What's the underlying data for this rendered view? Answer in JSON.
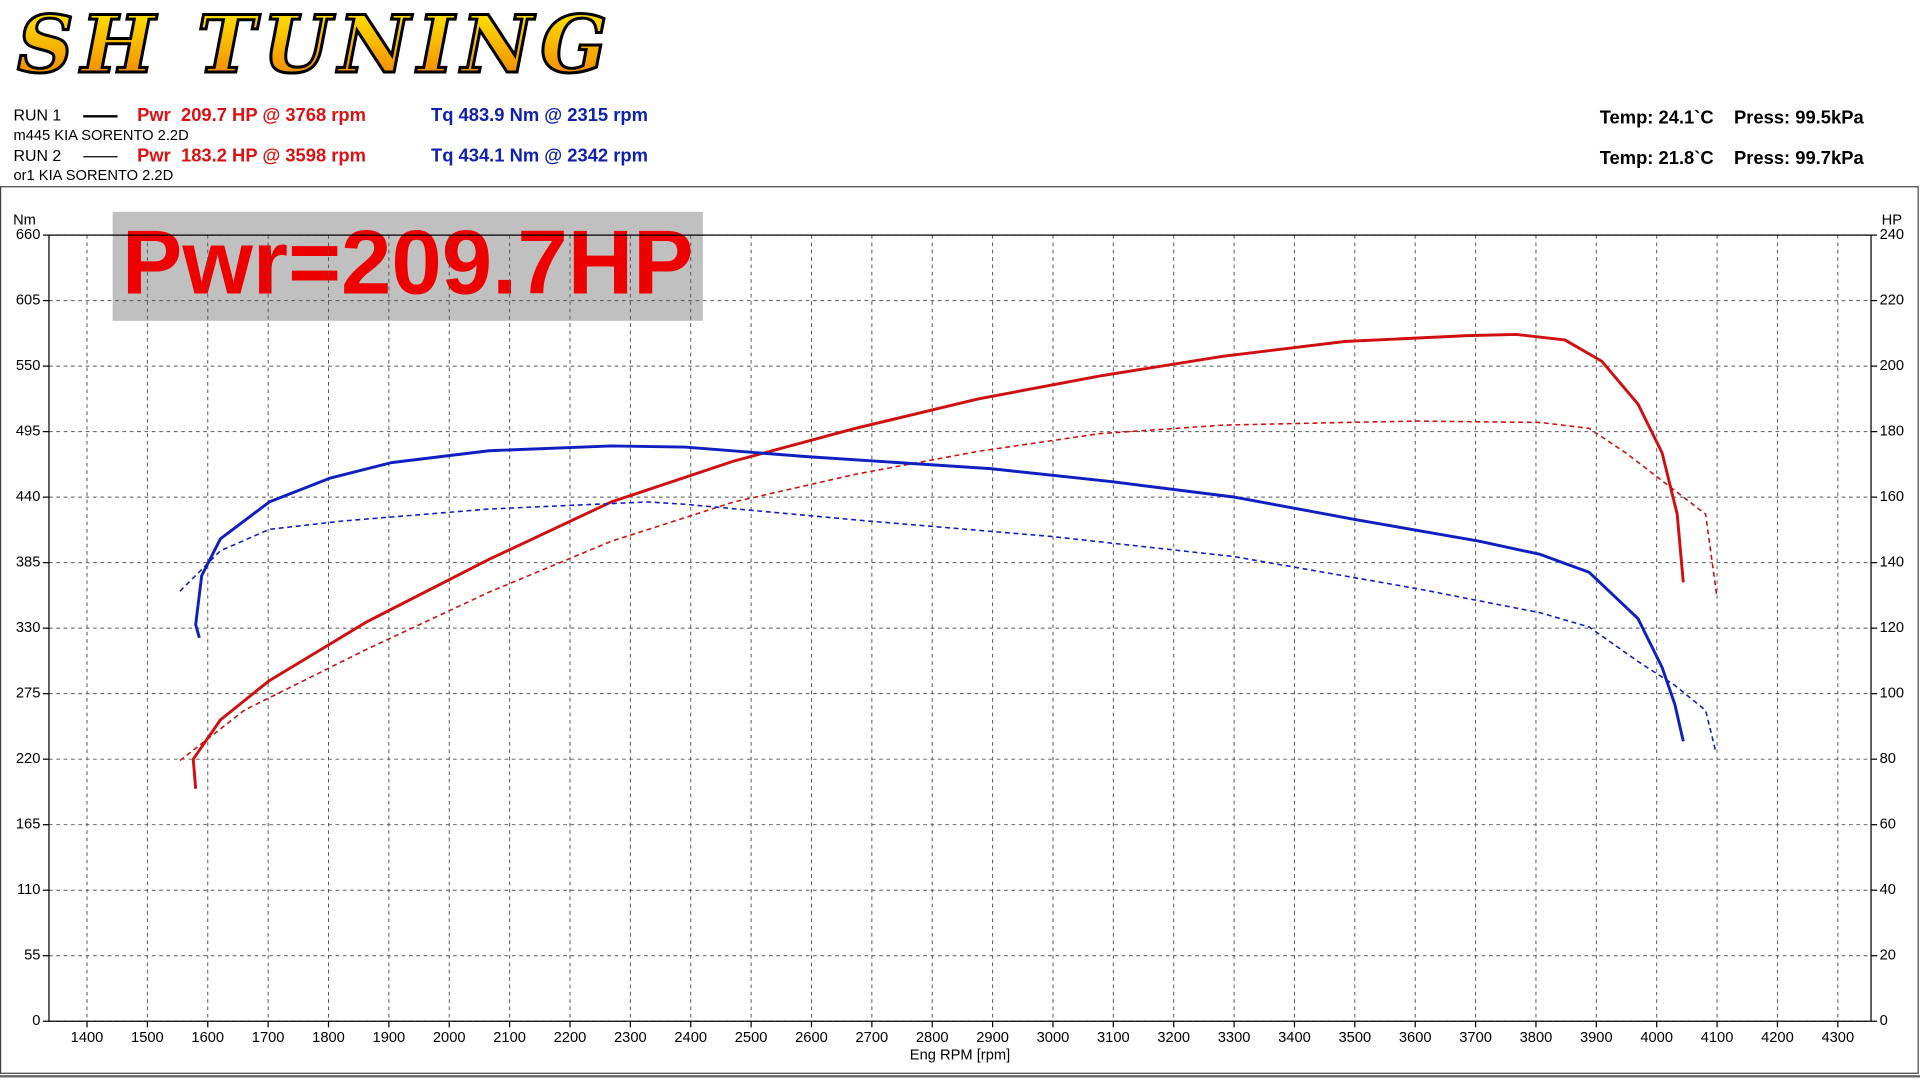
{
  "logo": "SH TUNING",
  "highlight": "Pwr=209.7HP",
  "runs": [
    {
      "label": "RUN 1",
      "name": "m445 KIA SORENTO 2.2D",
      "power": "Pwr  209.7 HP @ 3768 rpm",
      "torque": "Tq 483.9 Nm @ 2315 rpm",
      "conditions": "Temp: 24.1`C    Press: 99.5kPa",
      "dashed": false
    },
    {
      "label": "RUN 2",
      "name": "or1 KIA SORENTO 2.2D",
      "power": "Pwr  183.2 HP @ 3598 rpm",
      "torque": "Tq 434.1 Nm @ 2342 rpm",
      "conditions": "Temp: 21.8`C    Press: 99.7kPa",
      "dashed": true
    }
  ],
  "chart_data": {
    "type": "line",
    "x_label": "Eng RPM [rpm]",
    "y_label": "Nm",
    "y2_label": "HP",
    "xlim": [
      1337,
      4355
    ],
    "xticks": [
      1400,
      1500,
      1600,
      1700,
      1800,
      1900,
      2000,
      2100,
      2200,
      2300,
      2400,
      2500,
      2600,
      2700,
      2800,
      2900,
      3000,
      3100,
      3200,
      3300,
      3400,
      3500,
      3600,
      3700,
      3800,
      3900,
      4000,
      4100,
      4200,
      4300
    ],
    "ylim": [
      0,
      660
    ],
    "yticks": [
      0,
      55,
      110,
      165,
      220,
      275,
      330,
      385,
      440,
      495,
      550,
      605,
      660
    ],
    "y2lim": [
      0,
      240
    ],
    "y2ticks": [
      0,
      20,
      40,
      60,
      80,
      100,
      120,
      140,
      160,
      180,
      200,
      220,
      240
    ],
    "grid": true,
    "series": [
      {
        "color": "#d01010",
        "dashed": false,
        "axis": "y2",
        "x": [
          1580,
          1576,
          1621,
          1702,
          1864,
          2066,
          2268,
          2471,
          2673,
          2876,
          3078,
          3281,
          3483,
          3686,
          3767,
          3848,
          3909,
          3969,
          4009,
          4034,
          4044
        ],
        "values": [
          71,
          80,
          92,
          104,
          122,
          141,
          158.5,
          171,
          181,
          190,
          197,
          203,
          207.5,
          209.3,
          209.7,
          208,
          201.5,
          188.4,
          173.5,
          154.8,
          134
        ]
      },
      {
        "color": "#d01010",
        "dashed": true,
        "axis": "y2",
        "x": [
          1554,
          1661,
          1864,
          2066,
          2268,
          2471,
          2673,
          2876,
          3078,
          3281,
          3483,
          3605,
          3807,
          3888,
          3949,
          4030,
          4081,
          4099
        ],
        "values": [
          79.6,
          95,
          113.6,
          131,
          146.5,
          158.5,
          167,
          174,
          179.4,
          182,
          182.8,
          183.2,
          182.8,
          181,
          173.5,
          162,
          154.8,
          130.5
        ]
      },
      {
        "color": "#1020c0",
        "dashed": false,
        "axis": "y",
        "x": [
          1586,
          1580,
          1590,
          1621,
          1702,
          1803,
          1904,
          2066,
          2268,
          2390,
          2592,
          2896,
          3098,
          3301,
          3503,
          3706,
          3807,
          3888,
          3969,
          4009,
          4030,
          4044
        ],
        "values": [
          322,
          333,
          374,
          405,
          436,
          456,
          469,
          479,
          483,
          482,
          474,
          464,
          453,
          440,
          421,
          403,
          392,
          377,
          338,
          297,
          266,
          235
        ]
      },
      {
        "color": "#1020c0",
        "dashed": true,
        "axis": "y",
        "x": [
          1554,
          1621,
          1702,
          1823,
          2066,
          2329,
          2390,
          2694,
          2997,
          3301,
          3605,
          3807,
          3888,
          3969,
          4030,
          4081,
          4097
        ],
        "values": [
          361,
          395,
          413,
          420,
          430,
          436,
          434,
          420,
          407,
          390,
          363,
          343,
          331,
          302,
          282,
          261,
          228
        ]
      }
    ]
  }
}
